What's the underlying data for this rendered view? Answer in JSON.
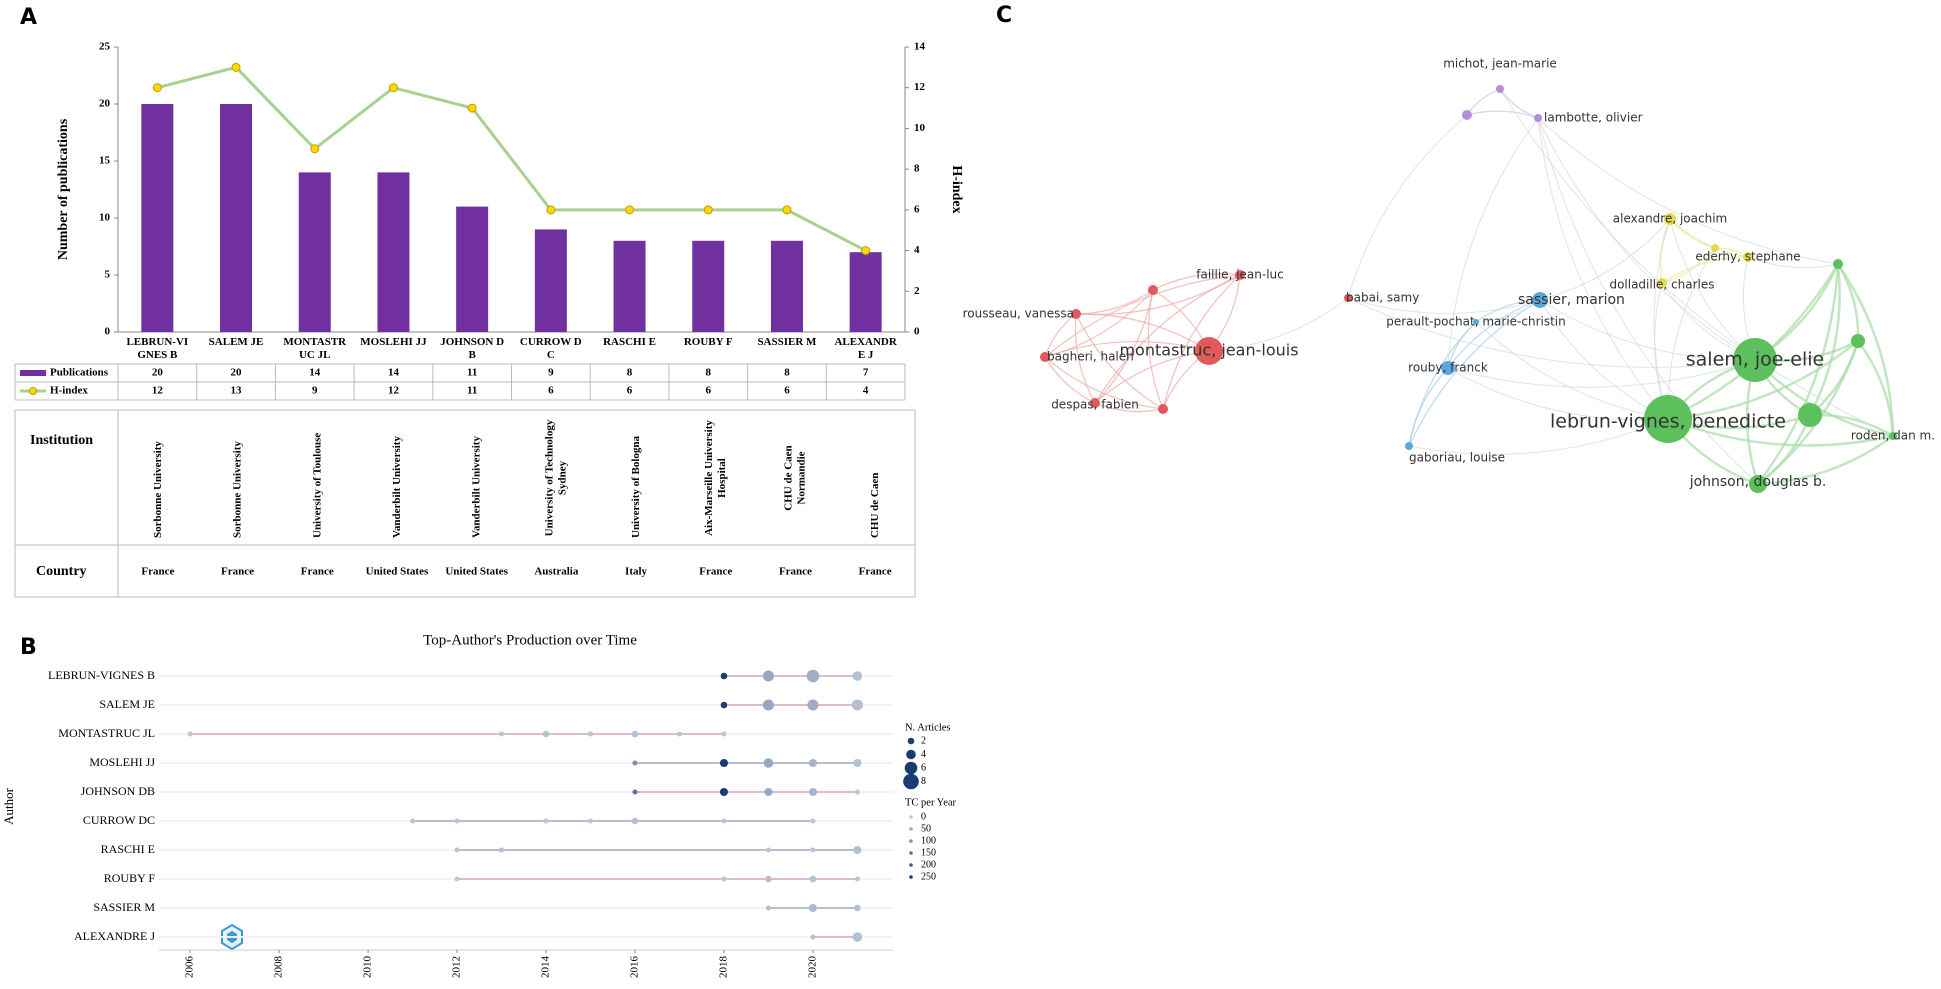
{
  "panels": [
    "A",
    "B",
    "C"
  ],
  "chart_data": [
    {
      "type": "bar_line",
      "categories": [
        "LEBRUN-VIGNES B",
        "SALEM JE",
        "MONTASTRUC JL",
        "MOSLEHI JJ",
        "JOHNSON DB",
        "CURROW DC",
        "RASCHI E",
        "ROUBY F",
        "SASSIER M",
        "ALEXANDRE J"
      ],
      "series": [
        {
          "name": "Publications",
          "color": "#7030a0",
          "values": [
            20,
            20,
            14,
            14,
            11,
            9,
            8,
            8,
            8,
            7
          ]
        },
        {
          "name": "H-index",
          "type": "line",
          "axis": "y2",
          "color": "#a9d18e",
          "marker_color": "#ffd700",
          "values": [
            12,
            13,
            9,
            12,
            11,
            6,
            6,
            6,
            6,
            4
          ]
        }
      ],
      "ylabel": "Number of publications",
      "y2label": "H-index",
      "ylim": [
        0,
        25
      ],
      "yticks": [
        0,
        5,
        10,
        15,
        20,
        25
      ],
      "y2lim": [
        0,
        14
      ],
      "y2ticks": [
        0,
        2,
        4,
        6,
        8,
        10,
        12,
        14
      ],
      "table": {
        "row_headers": [
          "Institution",
          "Country"
        ],
        "rows": [
          [
            "Sorbonne University",
            "Sorbonne University",
            "University of Toulouse",
            "Vanderbilt University",
            "Vanderbilt University",
            "University of Technology Sydney",
            "University of Bologna",
            "Aix-Marseille University Hospital",
            "CHU de Caen Normandie",
            "CHU de Caen"
          ],
          [
            "France",
            "France",
            "France",
            "United States",
            "United States",
            "Australia",
            "Italy",
            "France",
            "France",
            "France"
          ]
        ]
      }
    },
    {
      "type": "timeline",
      "title": "Top-Author's Production over Time",
      "ylabel": "Author",
      "xlim": [
        2005.3,
        2021.8
      ],
      "xticks": [
        2006,
        2008,
        2010,
        2012,
        2014,
        2016,
        2018,
        2020
      ],
      "categories": [
        "LEBRUN-VIGNES B",
        "SALEM JE",
        "MONTASTRUC JL",
        "MOSLEHI JJ",
        "JOHNSON DB",
        "CURROW DC",
        "RASCHI E",
        "ROUBY F",
        "SASSIER M",
        "ALEXANDRE J"
      ],
      "rows": [
        {
          "color": "#d9a7b6",
          "points": [
            {
              "x": 2018,
              "articles": 2,
              "tc": 250
            },
            {
              "x": 2019,
              "articles": 5,
              "tc": 60
            },
            {
              "x": 2020,
              "articles": 6,
              "tc": 50
            },
            {
              "x": 2021,
              "articles": 4,
              "tc": 20
            }
          ]
        },
        {
          "color": "#d9a7b6",
          "points": [
            {
              "x": 2018,
              "articles": 2,
              "tc": 250
            },
            {
              "x": 2019,
              "articles": 5,
              "tc": 60
            },
            {
              "x": 2020,
              "articles": 5,
              "tc": 50
            },
            {
              "x": 2021,
              "articles": 5,
              "tc": 20
            }
          ]
        },
        {
          "color": "#d9a7b6",
          "points": [
            {
              "x": 2006,
              "articles": 1,
              "tc": 5
            },
            {
              "x": 2013,
              "articles": 1,
              "tc": 10
            },
            {
              "x": 2014,
              "articles": 2,
              "tc": 15
            },
            {
              "x": 2015,
              "articles": 1,
              "tc": 10
            },
            {
              "x": 2016,
              "articles": 2,
              "tc": 20
            },
            {
              "x": 2017,
              "articles": 1,
              "tc": 10
            },
            {
              "x": 2018,
              "articles": 1,
              "tc": 10
            }
          ]
        },
        {
          "color": "#a3adc4",
          "points": [
            {
              "x": 2016,
              "articles": 1,
              "tc": 100
            },
            {
              "x": 2018,
              "articles": 3,
              "tc": 250
            },
            {
              "x": 2019,
              "articles": 4,
              "tc": 60
            },
            {
              "x": 2020,
              "articles": 3,
              "tc": 40
            },
            {
              "x": 2021,
              "articles": 3,
              "tc": 20
            }
          ]
        },
        {
          "color": "#d9a7b6",
          "points": [
            {
              "x": 2016,
              "articles": 1,
              "tc": 150
            },
            {
              "x": 2018,
              "articles": 3,
              "tc": 250
            },
            {
              "x": 2019,
              "articles": 3,
              "tc": 60
            },
            {
              "x": 2020,
              "articles": 3,
              "tc": 40
            },
            {
              "x": 2021,
              "articles": 1,
              "tc": 10
            }
          ]
        },
        {
          "color": "#a3adc4",
          "points": [
            {
              "x": 2011,
              "articles": 1,
              "tc": 5
            },
            {
              "x": 2012,
              "articles": 1,
              "tc": 10
            },
            {
              "x": 2014,
              "articles": 1,
              "tc": 10
            },
            {
              "x": 2015,
              "articles": 1,
              "tc": 10
            },
            {
              "x": 2016,
              "articles": 2,
              "tc": 15
            },
            {
              "x": 2018,
              "articles": 1,
              "tc": 10
            },
            {
              "x": 2020,
              "articles": 1,
              "tc": 5
            }
          ]
        },
        {
          "color": "#a3adc4",
          "points": [
            {
              "x": 2012,
              "articles": 1,
              "tc": 10
            },
            {
              "x": 2013,
              "articles": 1,
              "tc": 20
            },
            {
              "x": 2019,
              "articles": 1,
              "tc": 10
            },
            {
              "x": 2020,
              "articles": 1,
              "tc": 10
            },
            {
              "x": 2021,
              "articles": 3,
              "tc": 20
            }
          ]
        },
        {
          "color": "#d9a7b6",
          "points": [
            {
              "x": 2012,
              "articles": 1,
              "tc": 5
            },
            {
              "x": 2018,
              "articles": 1,
              "tc": 10
            },
            {
              "x": 2019,
              "articles": 2,
              "tc": 20
            },
            {
              "x": 2020,
              "articles": 2,
              "tc": 20
            },
            {
              "x": 2021,
              "articles": 1,
              "tc": 10
            }
          ]
        },
        {
          "color": "#a3adc4",
          "points": [
            {
              "x": 2019,
              "articles": 1,
              "tc": 20
            },
            {
              "x": 2020,
              "articles": 3,
              "tc": 30
            },
            {
              "x": 2021,
              "articles": 2,
              "tc": 20
            }
          ]
        },
        {
          "color": "#d9a7b6",
          "points": [
            {
              "x": 2020,
              "articles": 1,
              "tc": 20
            },
            {
              "x": 2021,
              "articles": 4,
              "tc": 20
            }
          ]
        }
      ],
      "size_legend": {
        "title": "N. Articles",
        "values": [
          2,
          4,
          6,
          8
        ]
      },
      "color_legend": {
        "title": "TC per Year",
        "values": [
          0,
          50,
          100,
          150,
          200,
          250
        ]
      }
    }
  ],
  "network": {
    "nodes": [
      {
        "label": "michot, jean-marie",
        "color": "#b48fd6"
      },
      {
        "label": "lambotte, olivier",
        "color": "#b48fd6"
      },
      {
        "label": "montastruc, jean-louis",
        "color": "#e05a5a"
      },
      {
        "label": "rousseau, vanessa",
        "color": "#e05a5a"
      },
      {
        "label": "faillie, jean-luc",
        "color": "#e05a5a"
      },
      {
        "label": "bagheri, haleh",
        "color": "#e05a5a"
      },
      {
        "label": "despas, fabien",
        "color": "#e05a5a"
      },
      {
        "label": "babai, samy",
        "color": "#e05a5a"
      },
      {
        "label": "sassier, marion",
        "color": "#5aa7e0"
      },
      {
        "label": "perault-pochat, marie-christin",
        "color": "#5aa7e0"
      },
      {
        "label": "rouby, franck",
        "color": "#5aa7e0"
      },
      {
        "label": "gaboriau, louise",
        "color": "#5aa7e0"
      },
      {
        "label": "alexandre, joachim",
        "color": "#e3dc4a"
      },
      {
        "label": "ederhy, stephane",
        "color": "#e3dc4a"
      },
      {
        "label": "dolladille, charles",
        "color": "#e3dc4a"
      },
      {
        "label": "salem, joe-elie",
        "color": "#5cc05c"
      },
      {
        "label": "lebrun-vignes, benedicte",
        "color": "#5cc05c"
      },
      {
        "label": "johnson, douglas b.",
        "color": "#5cc05c"
      },
      {
        "label": "roden, dan m.",
        "color": "#5cc05c"
      }
    ]
  }
}
